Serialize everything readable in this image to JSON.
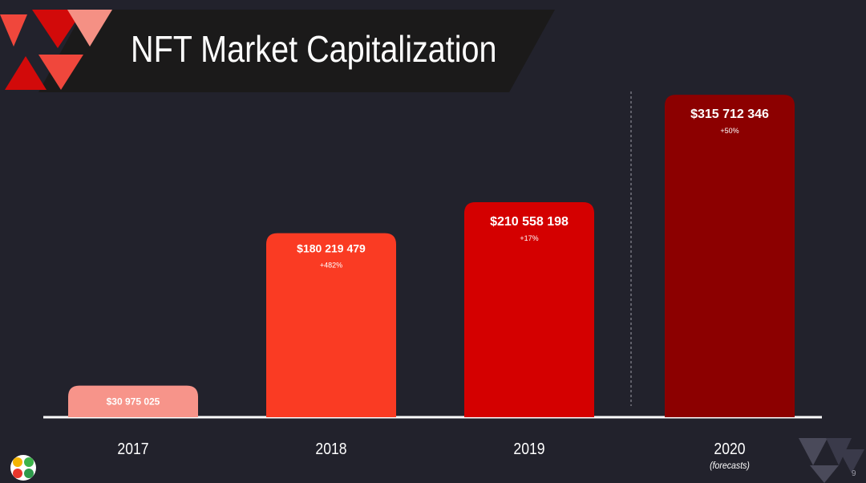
{
  "slide": {
    "title": "NFT Market Capitalization",
    "page_number": "9",
    "colors": {
      "background": "#22222c",
      "title_band": "#1b1a1a",
      "axis_line": "#ffffff",
      "text": "#ffffff"
    }
  },
  "chart_data": {
    "type": "bar",
    "title": "NFT Market Capitalization",
    "xlabel": "",
    "ylabel": "",
    "ylim": [
      0,
      330000000
    ],
    "grid": false,
    "categories": [
      "2017",
      "2018",
      "2019",
      "2020"
    ],
    "category_notes": [
      "",
      "",
      "",
      "(forecasts)"
    ],
    "values": [
      30975025,
      180219479,
      210558198,
      315712346
    ],
    "value_labels": [
      "$30 975 025",
      "$180 219 479",
      "$210 558 198",
      "$315 712 346"
    ],
    "growth_labels": [
      "",
      "+482%",
      "+17%",
      "+50%"
    ],
    "bar_colors": [
      "#f7948a",
      "#fa3b23",
      "#d40000",
      "#8c0000"
    ],
    "separator_before_category": "2020"
  }
}
